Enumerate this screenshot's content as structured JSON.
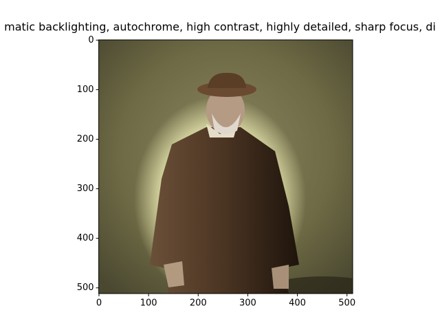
{
  "chart_data": {
    "type": "image",
    "title": "matic backlighting, autochrome, high contrast, highly detailed, sharp focus, di",
    "xlim": [
      -0.5,
      511.5
    ],
    "ylim": [
      511.5,
      -0.5
    ],
    "xticks": [
      0,
      100,
      200,
      300,
      400,
      500
    ],
    "yticks": [
      0,
      100,
      200,
      300,
      400,
      500
    ]
  }
}
